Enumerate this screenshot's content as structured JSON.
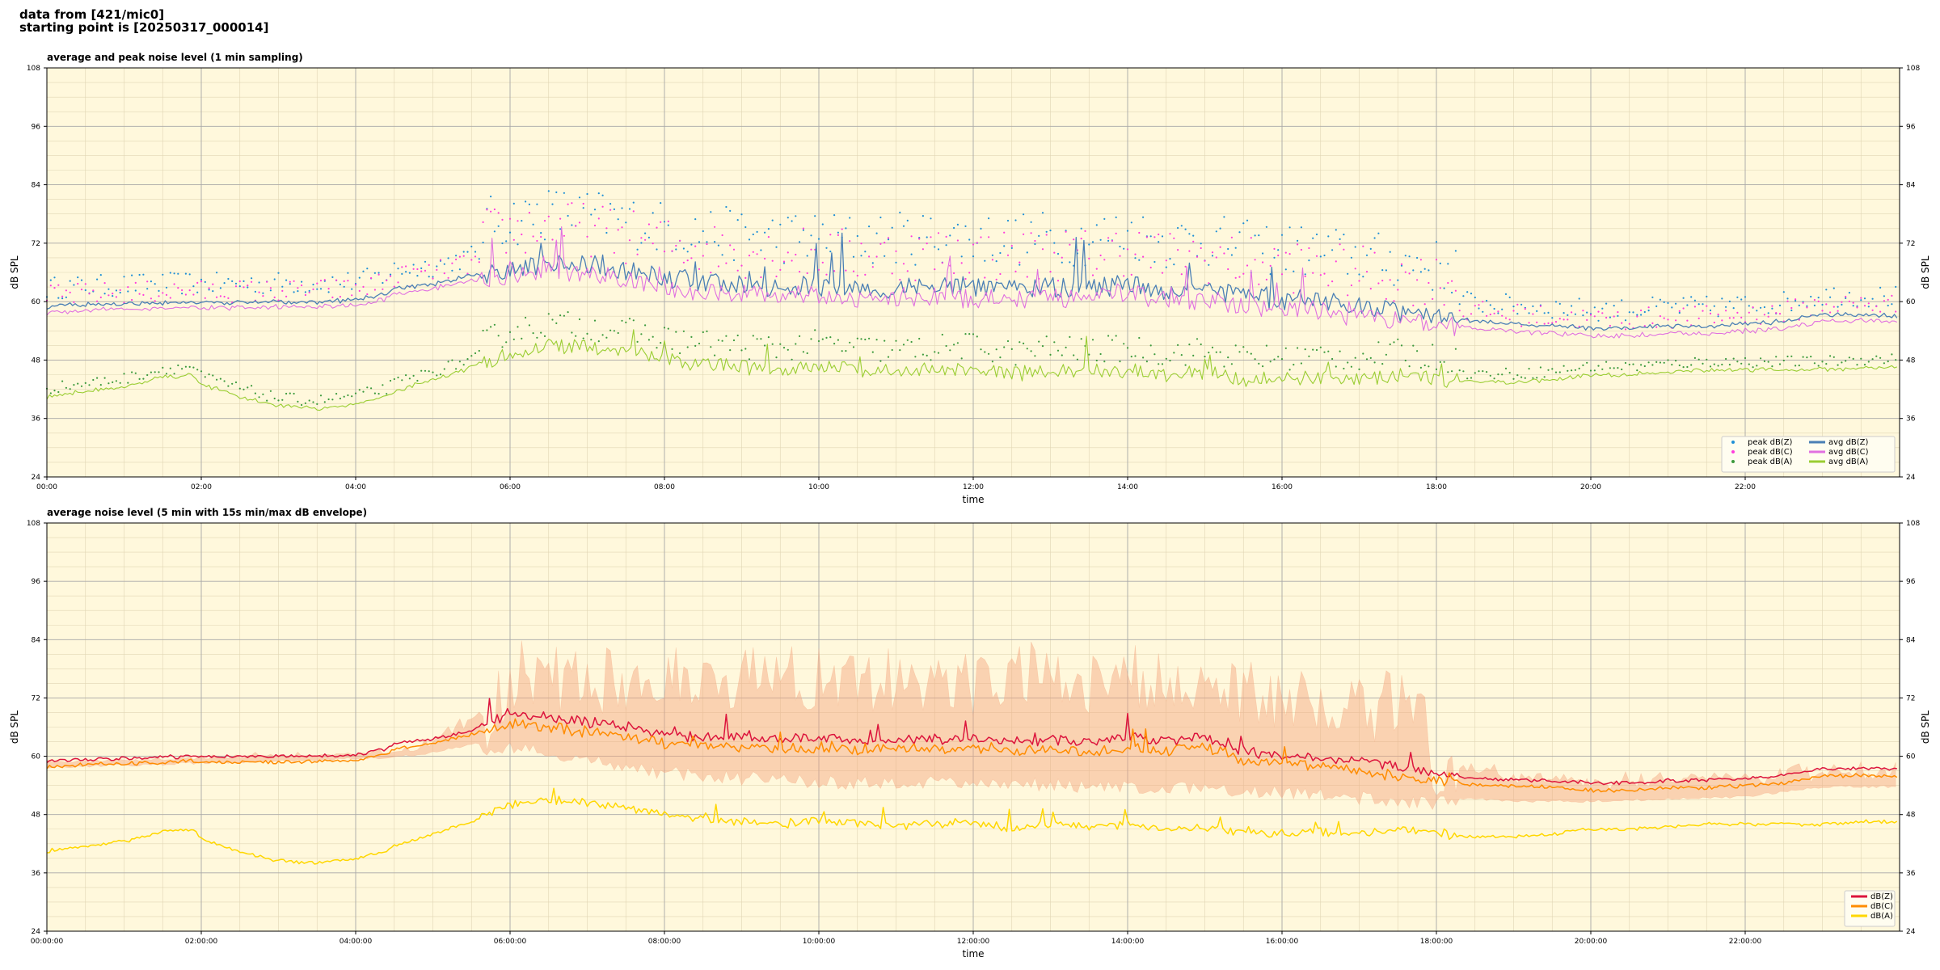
{
  "header": {
    "line1": "data from [421/mic0]",
    "line2": "starting point is [20250317_000014]"
  },
  "colors": {
    "plot_bg": "#fff8dc",
    "peak_z": "#1f8fd6",
    "peak_c": "#ff3cdc",
    "peak_a": "#3d9a3d",
    "avg_z": "#4a7fb5",
    "avg_c": "#e070e0",
    "avg_a": "#9acd32",
    "db_z": "#dc143c",
    "db_c": "#ff8c00",
    "db_a": "#ffd700",
    "envelope": "#f4a47c"
  },
  "chart_data": [
    {
      "type": "line",
      "title": "average and peak noise level (1 min sampling)",
      "xlabel": "time",
      "ylabel": "dB SPL",
      "xlim": [
        0,
        24
      ],
      "ylim": [
        24,
        108
      ],
      "yticks": [
        "24",
        "36",
        "48",
        "60",
        "72",
        "84",
        "96",
        "108"
      ],
      "xticks": [
        "00:00",
        "02:00",
        "04:00",
        "06:00",
        "08:00",
        "10:00",
        "12:00",
        "14:00",
        "16:00",
        "18:00",
        "20:00",
        "22:00"
      ],
      "grid": true,
      "legend_position": "bottom-right",
      "legend": [
        {
          "label": "peak dB(Z)",
          "kind": "dot",
          "color": "peak_z"
        },
        {
          "label": "peak dB(C)",
          "kind": "dot",
          "color": "peak_c"
        },
        {
          "label": "peak dB(A)",
          "kind": "dot",
          "color": "peak_a"
        },
        {
          "label": "avg dB(Z)",
          "kind": "line",
          "color": "avg_z"
        },
        {
          "label": "avg dB(C)",
          "kind": "line",
          "color": "avg_c"
        },
        {
          "label": "avg dB(A)",
          "kind": "line",
          "color": "avg_a"
        }
      ],
      "x_hours": [
        0,
        0.5,
        1,
        1.5,
        1.9,
        2,
        2.5,
        3,
        3.5,
        4,
        4.4,
        4.5,
        5,
        5.5,
        6,
        6.5,
        7,
        7.5,
        8,
        8.5,
        9,
        9.5,
        10,
        10.5,
        11,
        11.5,
        12,
        12.5,
        13,
        13.5,
        14,
        14.5,
        15,
        15.5,
        16,
        16.5,
        17,
        17.5,
        18,
        18.5,
        19,
        19.5,
        20,
        20.5,
        21,
        21.5,
        22,
        22.5,
        23,
        23.5,
        23.99
      ],
      "series": [
        {
          "name": "avg dB(Z)",
          "color": "avg_z",
          "width": 1.3,
          "noise": 4,
          "values": [
            59,
            59.3,
            59.6,
            59.8,
            60,
            59.8,
            59.9,
            60,
            60,
            60.3,
            61.5,
            62.7,
            63.5,
            65.5,
            66.5,
            68,
            67.5,
            66.5,
            65,
            64,
            63.5,
            63,
            63,
            62.5,
            62.8,
            63,
            62.8,
            62.5,
            63,
            62.5,
            64,
            62,
            62.5,
            61,
            60.5,
            60,
            59,
            58,
            57,
            56,
            55.3,
            55,
            54.5,
            54.5,
            55,
            55,
            55.5,
            56,
            57.5,
            57.3,
            57
          ]
        },
        {
          "name": "avg dB(C)",
          "color": "avg_c",
          "width": 1.1,
          "noise": 4,
          "values": [
            57.8,
            58.2,
            58.5,
            58.7,
            59,
            58.7,
            58.8,
            58.8,
            59,
            59.2,
            60.6,
            61.6,
            62.6,
            64.5,
            65.5,
            66.5,
            66,
            64.5,
            63,
            62,
            61.5,
            61,
            61,
            60.5,
            60.8,
            61,
            60.8,
            60.5,
            61,
            60.5,
            62,
            60,
            60.5,
            59,
            58.5,
            58,
            57,
            56,
            55.5,
            54.5,
            54,
            53.5,
            53,
            53,
            53.5,
            53.5,
            54,
            54.5,
            56,
            56,
            56
          ]
        },
        {
          "name": "avg dB(A)",
          "color": "avg_a",
          "width": 1.1,
          "noise": 3,
          "values": [
            40.5,
            41.5,
            42.5,
            44.5,
            45,
            43,
            40.5,
            38.5,
            38,
            39,
            40.5,
            41.5,
            44,
            46.5,
            49.5,
            51,
            50.5,
            49.5,
            48,
            47,
            46.5,
            46,
            47,
            46,
            45.5,
            46,
            46.5,
            45,
            46,
            45.5,
            46,
            45,
            45.5,
            44,
            44,
            44.5,
            44,
            45,
            44,
            43.5,
            43.5,
            44,
            45,
            45,
            45.5,
            46,
            46,
            46,
            46,
            46.5,
            46.5
          ]
        }
      ],
      "peak_series": [
        {
          "name": "peak dB(Z)",
          "color": "peak_z",
          "offset": 7,
          "spread": 8
        },
        {
          "name": "peak dB(C)",
          "color": "peak_c",
          "offset": 6,
          "spread": 8
        },
        {
          "name": "peak dB(A)",
          "color": "peak_a",
          "offset": 3,
          "spread": 4
        }
      ]
    },
    {
      "type": "line",
      "title": "average noise level (5 min with 15s min/max dB envelope)",
      "xlabel": "time",
      "ylabel": "dB SPL",
      "xlim": [
        0,
        24
      ],
      "ylim": [
        24,
        108
      ],
      "yticks": [
        "24",
        "36",
        "48",
        "60",
        "72",
        "84",
        "96",
        "108"
      ],
      "xticks": [
        "00:00:00",
        "02:00:00",
        "04:00:00",
        "06:00:00",
        "08:00:00",
        "10:00:00",
        "12:00:00",
        "14:00:00",
        "16:00:00",
        "18:00:00",
        "20:00:00",
        "22:00:00"
      ],
      "grid": true,
      "legend_position": "bottom-right",
      "legend": [
        {
          "label": "dB(Z)",
          "kind": "line",
          "color": "db_z"
        },
        {
          "label": "dB(C)",
          "kind": "line",
          "color": "db_c"
        },
        {
          "label": "dB(A)",
          "kind": "line",
          "color": "db_a"
        }
      ],
      "x_hours": [
        0,
        0.5,
        1,
        1.5,
        1.9,
        2,
        2.5,
        3,
        3.5,
        4,
        4.4,
        4.5,
        5,
        5.5,
        6,
        6.5,
        7,
        7.5,
        8,
        8.5,
        9,
        9.5,
        10,
        10.5,
        11,
        11.5,
        12,
        12.5,
        13,
        13.5,
        14,
        14.5,
        15,
        15.5,
        16,
        16.5,
        17,
        17.5,
        18,
        18.5,
        19,
        19.5,
        20,
        20.5,
        21,
        21.5,
        22,
        22.5,
        23,
        23.5,
        23.99
      ],
      "series": [
        {
          "name": "dB(Z)",
          "color": "db_z",
          "width": 1.5,
          "noise": 2,
          "values": [
            59,
            59.3,
            59.6,
            59.8,
            60,
            59.8,
            59.9,
            60,
            60,
            60.3,
            61.5,
            62.7,
            63.5,
            65.5,
            69,
            68,
            67,
            66,
            64.5,
            64,
            64,
            63.5,
            64,
            63.5,
            63.5,
            63.5,
            64,
            63,
            63.5,
            63,
            64,
            63,
            64,
            61,
            60.5,
            60,
            59,
            58,
            56.5,
            55.5,
            55.2,
            55,
            54.5,
            54.5,
            55,
            55,
            55.5,
            56,
            57.5,
            57.5,
            57.5
          ]
        },
        {
          "name": "dB(C)",
          "color": "db_c",
          "width": 1.5,
          "noise": 2,
          "values": [
            57.8,
            58.2,
            58.5,
            58.7,
            59,
            58.7,
            58.8,
            58.8,
            59,
            59.2,
            60.6,
            61.6,
            62.6,
            64.5,
            67,
            66,
            65,
            64,
            62.5,
            62,
            62,
            61.5,
            62,
            61.5,
            61.5,
            61.5,
            62,
            61,
            61.5,
            61,
            62,
            61,
            62,
            59,
            58.5,
            58,
            57,
            56,
            55,
            54,
            54,
            53.5,
            53,
            53,
            53.5,
            53.5,
            54,
            54.5,
            56,
            56,
            56
          ]
        },
        {
          "name": "dB(A)",
          "color": "db_a",
          "width": 1.5,
          "noise": 1.5,
          "values": [
            40.5,
            41.5,
            42.5,
            44.5,
            45,
            43,
            40.5,
            38.5,
            38,
            39,
            40.5,
            41.5,
            44,
            46.5,
            50,
            51,
            50.5,
            49.5,
            48,
            47,
            46.5,
            46,
            47,
            46,
            45.5,
            46,
            46.5,
            45,
            46,
            45.5,
            46,
            45,
            45.5,
            44,
            44,
            44.5,
            44,
            45,
            44,
            43.5,
            43.5,
            44,
            45,
            45,
            45.5,
            46,
            46,
            46,
            46,
            46.5,
            46.5
          ]
        }
      ],
      "envelope": {
        "color": "envelope",
        "x_hours": [
          0,
          4.5,
          5,
          5.6,
          6,
          7,
          8,
          10,
          12,
          14,
          15,
          16,
          17,
          17.8,
          18,
          19,
          20,
          22,
          23,
          24
        ],
        "upper": [
          60,
          62,
          65,
          72,
          84,
          84,
          84,
          84,
          84,
          84,
          84,
          78,
          78,
          80,
          62,
          58,
          57,
          58,
          59,
          59
        ],
        "lower": [
          58,
          60,
          61,
          63,
          63,
          61,
          58,
          56,
          56,
          55,
          55,
          54,
          53,
          52,
          52,
          51,
          51,
          52,
          54,
          54
        ]
      }
    }
  ]
}
